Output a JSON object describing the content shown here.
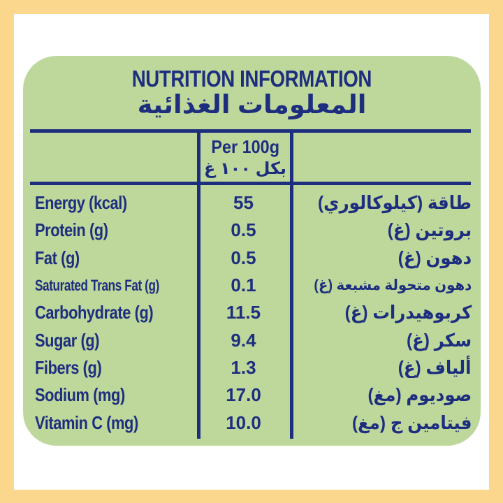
{
  "label": {
    "title_en": "NUTRITION INFORMATION",
    "title_ar": "المعلومات الغذائية",
    "header": {
      "per_en": "Per 100g",
      "per_ar": "بكل ١٠٠ غ"
    },
    "rows": [
      {
        "label_en": "Energy (kcal)",
        "value": "55",
        "label_ar": "طاقة (كيلوكالوري)"
      },
      {
        "label_en": "Protein (g)",
        "value": "0.5",
        "label_ar": "بروتين (غ)"
      },
      {
        "label_en": "Fat (g)",
        "value": "0.5",
        "label_ar": "دهون (غ)"
      },
      {
        "label_en": "Saturated Trans Fat (g)",
        "value": "0.1",
        "label_ar": "دهون متحولة مشبعة (غ)"
      },
      {
        "label_en": "Carbohydrate (g)",
        "value": "11.5",
        "label_ar": "كربوهيدرات (غ)"
      },
      {
        "label_en": "Sugar (g)",
        "value": "9.4",
        "label_ar": "سكر (غ)"
      },
      {
        "label_en": "Fibers (g)",
        "value": "1.3",
        "label_ar": "ألياف (غ)"
      },
      {
        "label_en": "Sodium (mg)",
        "value": "17.0",
        "label_ar": "صوديوم (مغ)"
      },
      {
        "label_en": "Vitamin C (mg)",
        "value": "10.0",
        "label_ar": "فيتامين ج (مغ)"
      }
    ],
    "colors": {
      "border_yellow": "#fbd78d",
      "panel_green": "#bed89c",
      "text_navy": "#1e2e7f",
      "background_white": "#ffffff"
    }
  }
}
